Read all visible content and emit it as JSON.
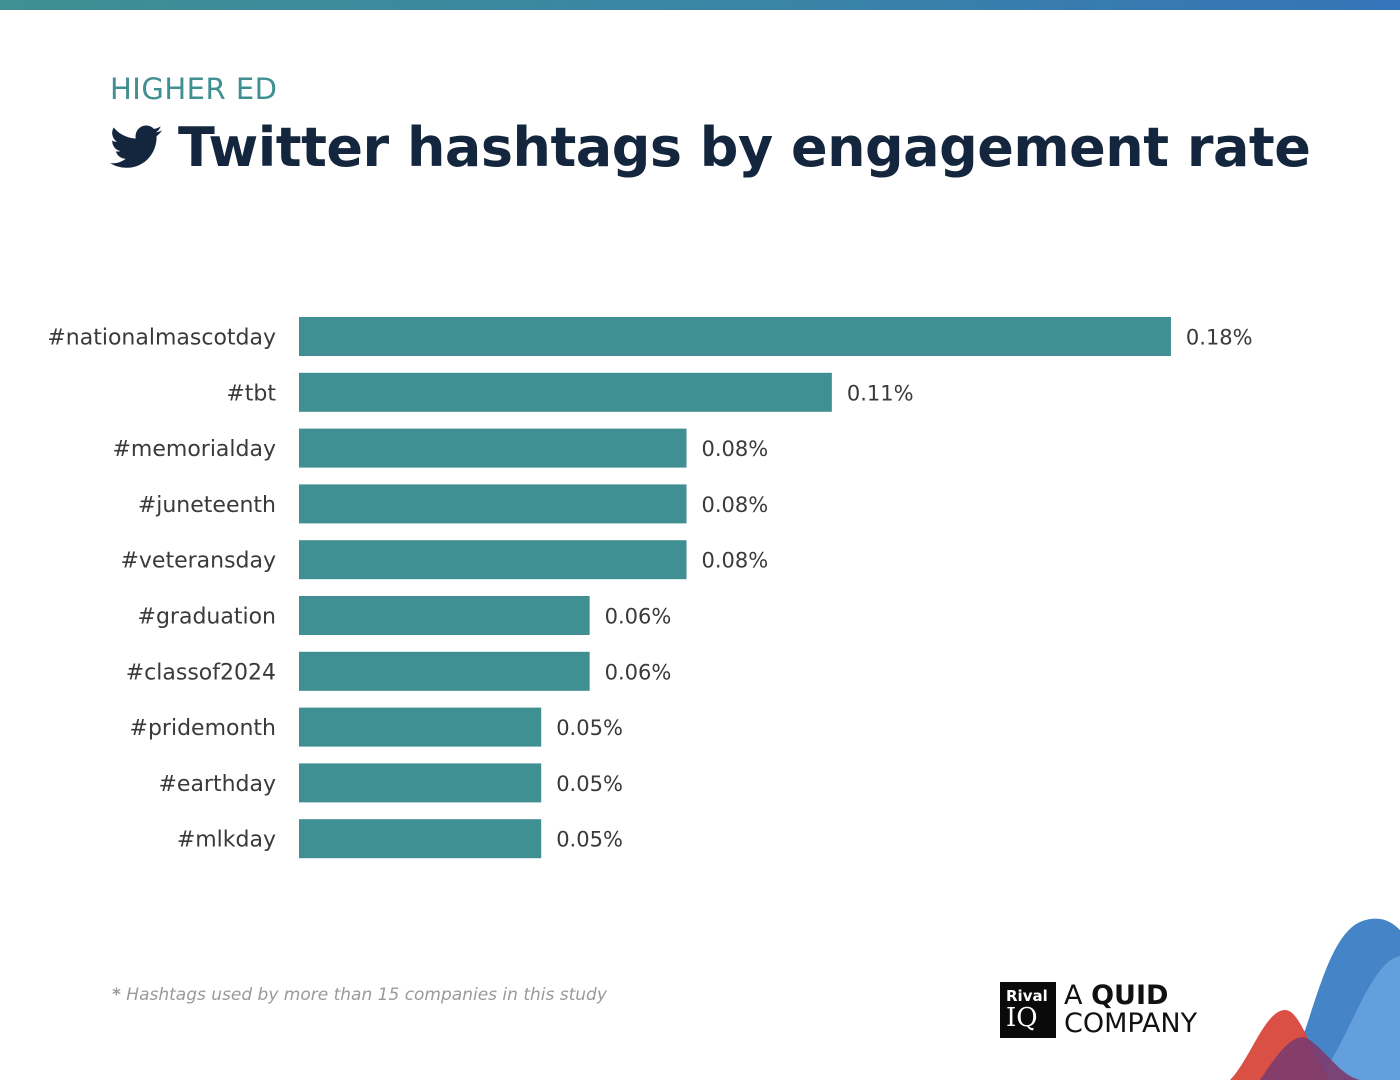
{
  "header": {
    "category": "HIGHER ED",
    "title": "Twitter hashtags by engagement rate"
  },
  "colors": {
    "bar": "#3f8f93",
    "category": "#3f8f93",
    "title": "#13263d",
    "wave_blue": "#3b7dc4",
    "wave_red": "#d9473a",
    "wave_purple": "#7b3b6e"
  },
  "icons": {
    "title_icon": "twitter-bird-icon"
  },
  "chart_data": {
    "type": "bar",
    "orientation": "horizontal",
    "categories": [
      "#nationalmascotday",
      "#tbt",
      "#memorialday",
      "#juneteenth",
      "#veteransday",
      "#graduation",
      "#classof2024",
      "#pridemonth",
      "#earthday",
      "#mlkday"
    ],
    "values": [
      0.18,
      0.11,
      0.08,
      0.08,
      0.08,
      0.06,
      0.06,
      0.05,
      0.05,
      0.05
    ],
    "value_labels": [
      "0.18%",
      "0.11%",
      "0.08%",
      "0.08%",
      "0.08%",
      "0.06%",
      "0.06%",
      "0.05%",
      "0.05%",
      "0.05%"
    ],
    "unit": "%",
    "grid": false,
    "legend": "none"
  },
  "footnote": {
    "marker": "*",
    "text": "Hashtags used by more than 15 companies in this study"
  },
  "brand": {
    "logo_line1": "Rival",
    "logo_line2": "IQ",
    "tagline_prefix": "A",
    "tagline_bold": "QUID",
    "tagline_line2": "COMPANY"
  }
}
